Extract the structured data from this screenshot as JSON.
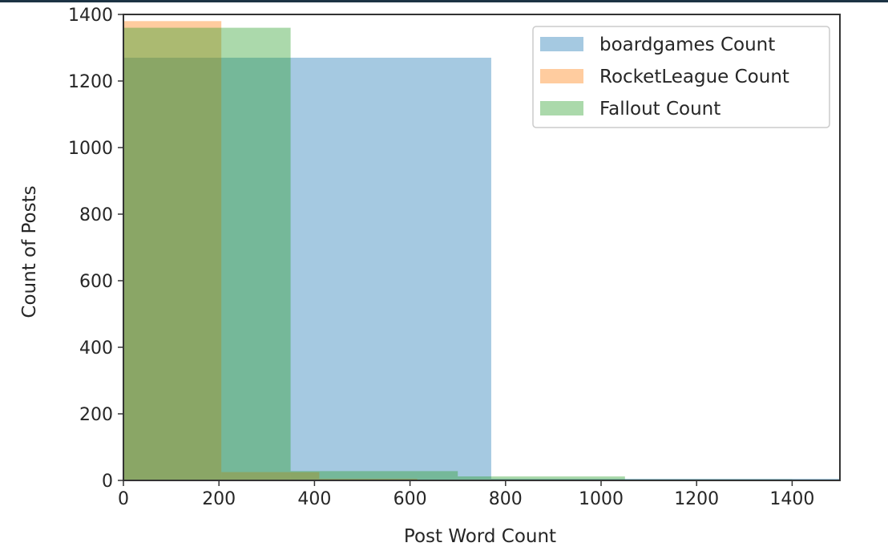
{
  "colors": {
    "frame": "#1c3344",
    "axes": "#333333",
    "boardgames": "#1f77b4",
    "RocketLeague": "#ff7f0e",
    "Fallout": "#2ca02c"
  },
  "chart_data": {
    "type": "bar",
    "subtype": "overlapping-histogram",
    "title": "",
    "xlabel": "Post Word Count",
    "ylabel": "Count of Posts",
    "xlim": [
      0,
      1500
    ],
    "ylim": [
      0,
      1400
    ],
    "xticks": [
      0,
      200,
      400,
      600,
      800,
      1000,
      1200,
      1400
    ],
    "yticks": [
      0,
      200,
      400,
      600,
      800,
      1000,
      1200,
      1400
    ],
    "bar_opacity": 0.4,
    "grid": false,
    "legend_position": "top-right",
    "series": [
      {
        "name": "boardgames Count",
        "color": "#1f77b4",
        "bins": [
          {
            "x0": 0,
            "x1": 770,
            "count": 1270
          },
          {
            "x0": 770,
            "x1": 1540,
            "count": 5
          }
        ]
      },
      {
        "name": "RocketLeague Count",
        "color": "#ff7f0e",
        "bins": [
          {
            "x0": 0,
            "x1": 205,
            "count": 1380
          },
          {
            "x0": 205,
            "x1": 410,
            "count": 25
          },
          {
            "x0": 410,
            "x1": 615,
            "count": 5
          },
          {
            "x0": 615,
            "x1": 820,
            "count": 2
          }
        ]
      },
      {
        "name": "Fallout Count",
        "color": "#2ca02c",
        "bins": [
          {
            "x0": 0,
            "x1": 350,
            "count": 1360
          },
          {
            "x0": 350,
            "x1": 700,
            "count": 28
          },
          {
            "x0": 700,
            "x1": 1050,
            "count": 12
          },
          {
            "x0": 1050,
            "x1": 1400,
            "count": 3
          }
        ]
      }
    ]
  }
}
